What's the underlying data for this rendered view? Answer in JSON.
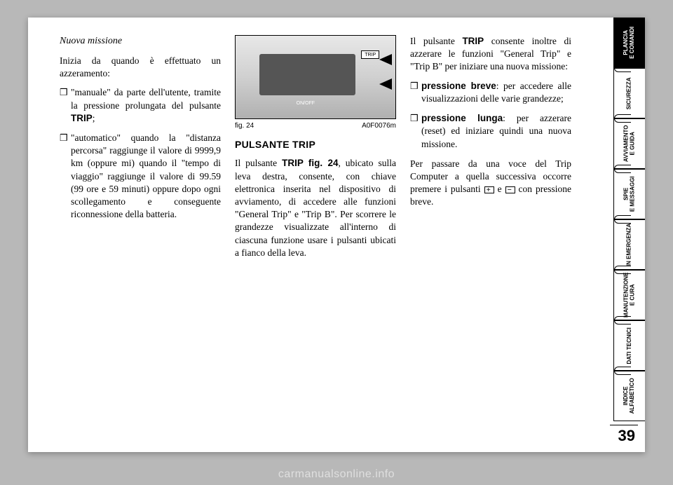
{
  "page_number": "39",
  "watermark": "carmanualsonline.info",
  "figure": {
    "caption_left": "fig. 24",
    "caption_right": "A0F0076m",
    "trip_label": "TRIP",
    "onoff_label": "ON/OFF"
  },
  "tabs": [
    {
      "label": "PLANCIA\nE COMANDI",
      "active": true
    },
    {
      "label": "SICUREZZA",
      "active": false
    },
    {
      "label": "AVVIAMENTO\nE GUIDA",
      "active": false
    },
    {
      "label": "SPIE\nE MESSAGGI",
      "active": false
    },
    {
      "label": "IN EMERGENZA",
      "active": false
    },
    {
      "label": "MANUTENZIONE\nE CURA",
      "active": false
    },
    {
      "label": "DATI TECNICI",
      "active": false
    },
    {
      "label": "INDICE\nALFABETICO",
      "active": false
    }
  ],
  "col1": {
    "heading": "Nuova missione",
    "intro": "Inizia da quando è effettuato un azzeramento:",
    "b1_pre": "\"manuale\" da parte dell'utente, tramite la pressione prolungata del pulsante ",
    "b1_bold": "TRIP",
    "b1_post": ";",
    "b2": "\"automatico\" quando la \"distanza percorsa\" raggiunge il valore di 9999,9 km (oppure mi) quando il \"tempo di viaggio\" raggiunge il valore di 99.59 (99 ore e 59 minuti) oppure dopo ogni scollegamento e conseguente riconnessione della batteria."
  },
  "col2": {
    "section": "PULSANTE TRIP",
    "p_pre": "Il pulsante ",
    "p_bold": "TRIP fig. 24",
    "p_post": ", ubicato sulla leva destra, consente, con chiave elettronica inserita nel dispositivo di avviamento, di accedere alle funzioni \"General Trip\" e \"Trip B\". Per scorrere le grandezze visualizzate all'interno di ciascuna funzione usare i pulsanti ubicati a fianco della leva."
  },
  "col3": {
    "p1_pre": "Il pulsante ",
    "p1_bold": "TRIP",
    "p1_post": " consente inoltre di azzerare le funzioni \"General Trip\" e \"Trip B\" per iniziare una nuova missione:",
    "b1_bold": "pressione breve",
    "b1_rest": ": per accedere alle visualizzazioni delle varie grandezze;",
    "b2_bold": "pressione lunga",
    "b2_rest": ": per azzerare (reset) ed iniziare quindi una nuova missione.",
    "p2_pre": "Per passare da una voce del Trip Computer a quella successiva occorre premere i pulsanti ",
    "p2_mid": " e ",
    "p2_post": " con pressione breve."
  }
}
